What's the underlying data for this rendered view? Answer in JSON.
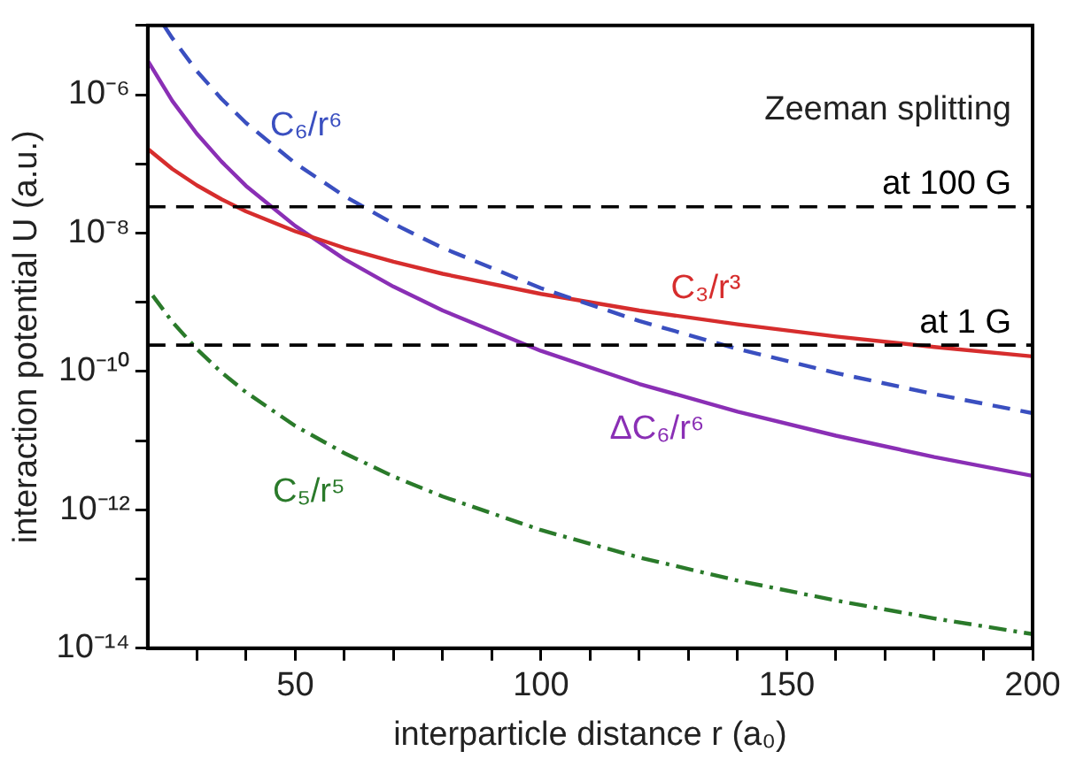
{
  "chart_data": {
    "type": "line",
    "xlabel": "interparticle distance r (a₀)",
    "ylabel": "interaction potential U (a.u.)",
    "log": "y",
    "grid": false,
    "legend": false,
    "marker": "none",
    "xlim": [
      20,
      200
    ],
    "xticks": [
      {
        "value": 30,
        "label": null
      },
      {
        "value": 40,
        "label": null
      },
      50,
      {
        "value": 60,
        "label": null
      },
      {
        "value": 70,
        "label": null
      },
      {
        "value": 80,
        "label": null
      },
      {
        "value": 90,
        "label": null
      },
      100,
      {
        "value": 110,
        "label": null
      },
      {
        "value": 120,
        "label": null
      },
      {
        "value": 130,
        "label": null
      },
      {
        "value": 140,
        "label": null
      },
      150,
      {
        "value": 160,
        "label": null
      },
      {
        "value": 170,
        "label": null
      },
      {
        "value": 180,
        "label": null
      },
      {
        "value": 190,
        "label": null
      },
      200
    ],
    "ylim": [
      1e-14,
      1e-05
    ],
    "yticks": [
      {
        "value": 1e-14,
        "label": "10⁻¹⁴"
      },
      {
        "value": 1e-13,
        "label": null
      },
      {
        "value": 1e-12,
        "label": "10⁻¹²"
      },
      {
        "value": 1e-11,
        "label": null
      },
      {
        "value": 1e-10,
        "label": "10⁻¹⁰"
      },
      {
        "value": 1e-09,
        "label": null
      },
      {
        "value": 1e-08,
        "label": "10⁻⁸"
      },
      {
        "value": 1e-07,
        "label": null
      },
      {
        "value": 1e-06,
        "label": "10⁻⁶"
      },
      {
        "value": 1e-05,
        "label": null
      }
    ],
    "series": [
      {
        "name": "C₆/r⁶",
        "color": "#3a4fc0",
        "line_style": "dashed",
        "x": [
          23.3,
          25,
          30,
          35,
          40,
          50,
          60,
          70,
          80,
          100,
          120,
          140,
          160,
          180,
          200
        ],
        "values": [
          1e-05,
          6.55e-06,
          2.19e-06,
          8.7e-07,
          3.9e-07,
          1.02e-07,
          3.43e-08,
          1.36e-08,
          6.1e-09,
          1.6e-09,
          5.36e-10,
          2.12e-10,
          9.5e-11,
          4.7e-11,
          2.5e-11
        ]
      },
      {
        "name": "C₃/r³",
        "color": "#d62d2d",
        "line_style": "solid",
        "x": [
          20,
          25,
          30,
          35,
          40,
          50,
          60,
          70,
          80,
          100,
          120,
          140,
          160,
          180,
          200
        ],
        "values": [
          1.65e-07,
          8.45e-08,
          4.9e-08,
          3.08e-08,
          2.06e-08,
          1.06e-08,
          6.1e-09,
          3.85e-09,
          2.58e-09,
          1.32e-09,
          7.6e-10,
          4.8e-10,
          3.2e-10,
          2.26e-10,
          1.65e-10
        ]
      },
      {
        "name": "ΔC₆/r⁶",
        "color": "#8a2fb5",
        "line_style": "solid",
        "x": [
          20,
          25,
          30,
          35,
          40,
          50,
          60,
          70,
          80,
          100,
          120,
          140,
          160,
          180,
          200
        ],
        "values": [
          3.1e-06,
          8.1e-07,
          2.72e-07,
          1.08e-07,
          4.8e-08,
          1.27e-08,
          4.2e-09,
          1.68e-09,
          7.6e-10,
          1.98e-10,
          6.6e-11,
          2.63e-11,
          1.18e-11,
          5.8e-12,
          3.1e-12
        ]
      },
      {
        "name": "C₅/r⁵",
        "color": "#2a7a2a",
        "line_style": "dashdot",
        "x": [
          21,
          25,
          30,
          35,
          40,
          50,
          60,
          70,
          80,
          100,
          120,
          140,
          160,
          180,
          200
        ],
        "values": [
          1.25e-09,
          5.2e-10,
          2.1e-10,
          9.7e-11,
          5e-11,
          1.63e-11,
          6.6e-12,
          3.03e-12,
          1.56e-12,
          5.1e-13,
          2.05e-13,
          9.5e-14,
          4.9e-14,
          2.7e-14,
          1.6e-14
        ]
      }
    ],
    "ref_lines": [
      {
        "axis": "y",
        "value": 2.4e-08,
        "label": "at 100 G",
        "color": "#000000",
        "line_style": "dashed"
      },
      {
        "axis": "y",
        "value": 2.4e-10,
        "label": "at 1 G",
        "color": "#000000",
        "line_style": "dashed"
      }
    ],
    "annotations": [
      "Zeeman splitting"
    ]
  }
}
